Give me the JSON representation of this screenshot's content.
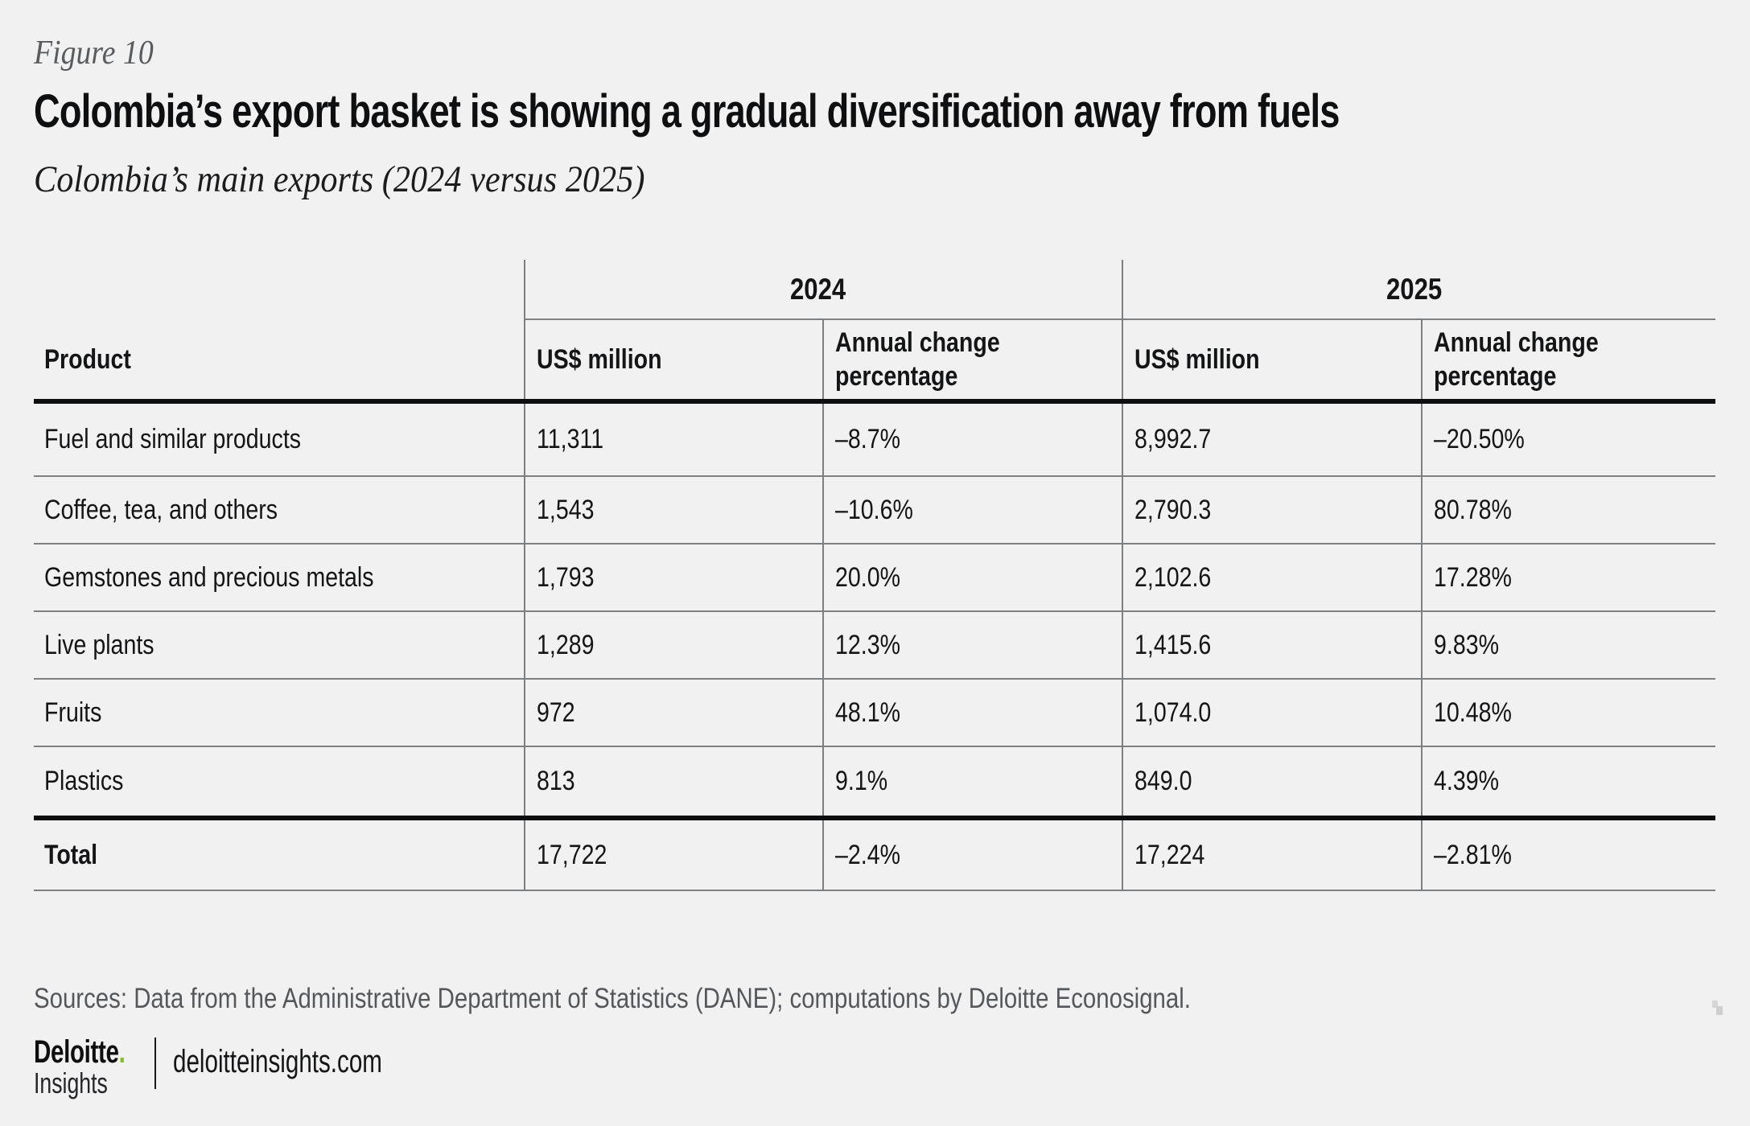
{
  "figure": {
    "label": "Figure 10",
    "title": "Colombia’s export basket is showing a gradual diversification away from fuels",
    "subtitle": "Colombia’s main exports (2024 versus 2025)"
  },
  "table": {
    "year_groups": [
      "2024",
      "2025"
    ],
    "col_product": "Product",
    "col_usd": "US$ million",
    "col_change": "Annual change percentage",
    "rows": [
      {
        "product": "Fuel and similar products",
        "usd_2024": "11,311",
        "chg_2024": "–8.7%",
        "usd_2025": "8,992.7",
        "chg_2025": "–20.50%"
      },
      {
        "product": "Coffee, tea, and others",
        "usd_2024": "1,543",
        "chg_2024": "–10.6%",
        "usd_2025": "2,790.3",
        "chg_2025": "80.78%"
      },
      {
        "product": "Gemstones and precious metals",
        "usd_2024": "1,793",
        "chg_2024": "20.0%",
        "usd_2025": "2,102.6",
        "chg_2025": "17.28%"
      },
      {
        "product": "Live plants",
        "usd_2024": "1,289",
        "chg_2024": "12.3%",
        "usd_2025": "1,415.6",
        "chg_2025": "9.83%"
      },
      {
        "product": "Fruits",
        "usd_2024": "972",
        "chg_2024": "48.1%",
        "usd_2025": "1,074.0",
        "chg_2025": "10.48%"
      },
      {
        "product": "Plastics",
        "usd_2024": "813",
        "chg_2024": "9.1%",
        "usd_2025": "849.0",
        "chg_2025": "4.39%"
      }
    ],
    "total": {
      "product": "Total",
      "usd_2024": "17,722",
      "chg_2024": "–2.4%",
      "usd_2025": "17,224",
      "chg_2025": "–2.81%"
    }
  },
  "chart_data": {
    "type": "table",
    "title": "Colombia’s export basket is showing a gradual diversification away from fuels",
    "subtitle": "Colombia’s main exports (2024 versus 2025)",
    "columns": [
      "Product",
      "2024 US$ million",
      "2024 Annual change percentage",
      "2025 US$ million",
      "2025 Annual change percentage"
    ],
    "rows": [
      [
        "Fuel and similar products",
        11311,
        -8.7,
        8992.7,
        -20.5
      ],
      [
        "Coffee, tea, and others",
        1543,
        -10.6,
        2790.3,
        80.78
      ],
      [
        "Gemstones and precious metals",
        1793,
        20.0,
        2102.6,
        17.28
      ],
      [
        "Live plants",
        1289,
        12.3,
        1415.6,
        9.83
      ],
      [
        "Fruits",
        972,
        48.1,
        1074.0,
        10.48
      ],
      [
        "Plastics",
        813,
        9.1,
        849.0,
        4.39
      ],
      [
        "Total",
        17722,
        -2.4,
        17224,
        -2.81
      ]
    ]
  },
  "footer": {
    "sources": "Sources: Data from the Administrative Department of Statistics (DANE); computations by Deloitte Econosignal.",
    "brand": "Deloitte",
    "brand_dot": ".",
    "brand_sub": "Insights",
    "site": "deloitteinsights.com"
  },
  "colors": {
    "background": "#f1f1f2",
    "accent_green": "#86bc25",
    "grid_line": "#7d8083",
    "heavy_line": "#0d0e0f",
    "text_primary": "#141517",
    "text_secondary": "#54575b"
  }
}
